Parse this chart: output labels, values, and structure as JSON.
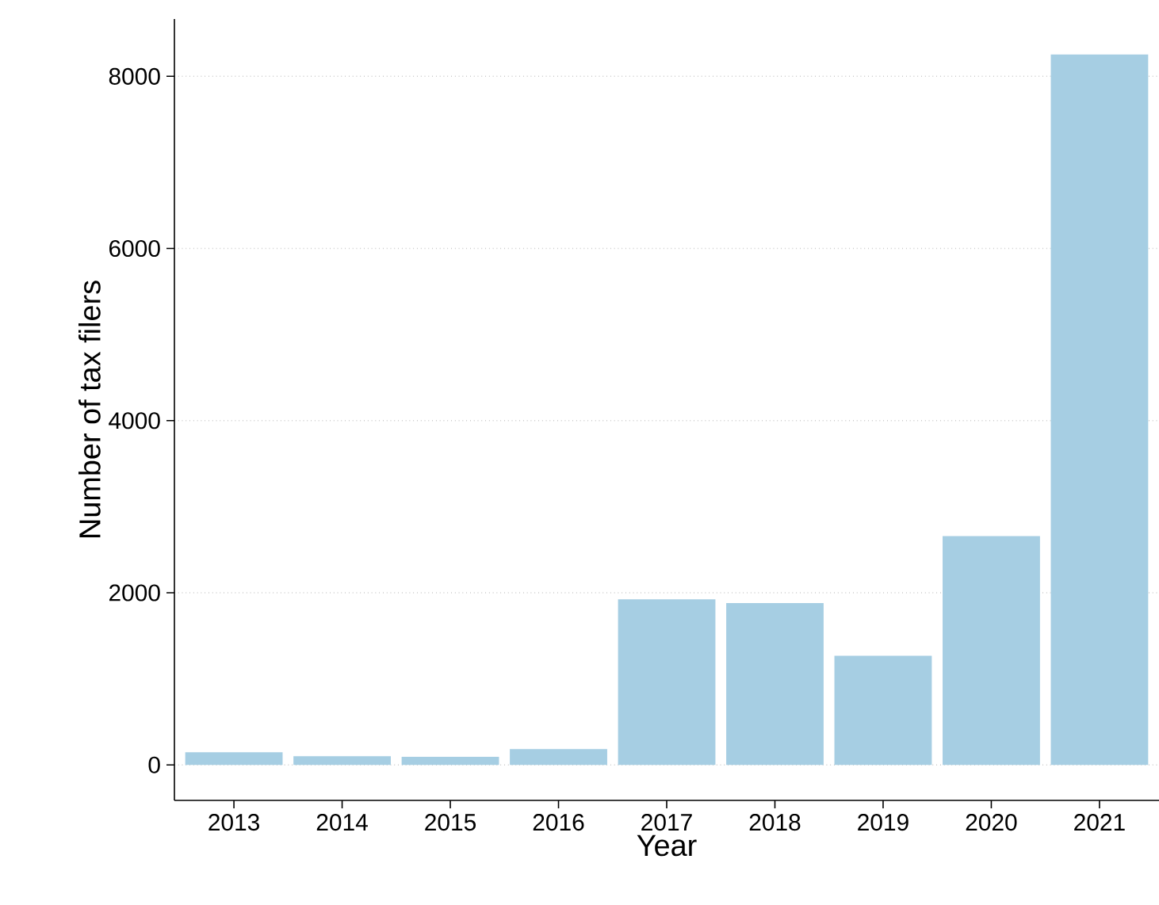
{
  "chart_data": {
    "type": "bar",
    "xlabel": "Year",
    "ylabel": "Number of tax filers",
    "categories": [
      "2013",
      "2014",
      "2015",
      "2016",
      "2017",
      "2018",
      "2019",
      "2020",
      "2021"
    ],
    "values": [
      147,
      100,
      95,
      184,
      1923,
      1880,
      1268,
      2658,
      8254
    ],
    "color": "#a6cee3",
    "ylim": [
      -412,
      8666
    ],
    "yticks": [
      0,
      2000,
      4000,
      6000,
      8000
    ],
    "grid": "y"
  }
}
